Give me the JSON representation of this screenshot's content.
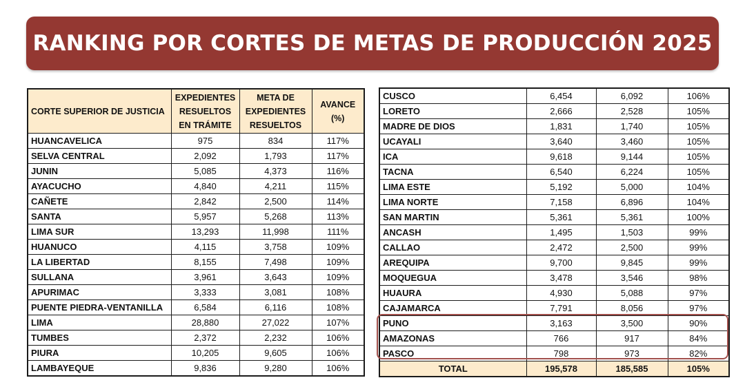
{
  "title": "RANKING POR CORTES DE METAS DE PRODUCCIÓN 2025",
  "colors": {
    "banner": "#943832",
    "header_fill": "#fdebcc",
    "highlight_border": "#a14e4a"
  },
  "headers": {
    "corte": "CORTE SUPERIOR DE JUSTICIA",
    "resueltos": [
      "EXPEDIENTES",
      "RESUELTOS",
      "EN TRÁMITE"
    ],
    "meta": [
      "META DE",
      "EXPEDIENTES",
      "RESUELTOS"
    ],
    "avance": [
      "AVANCE",
      "(%)"
    ]
  },
  "left_rows": [
    {
      "corte": "HUANCAVELICA",
      "resueltos": "975",
      "meta": "834",
      "avance": "117%"
    },
    {
      "corte": "SELVA CENTRAL",
      "resueltos": "2,092",
      "meta": "1,793",
      "avance": "117%"
    },
    {
      "corte": "JUNIN",
      "resueltos": "5,085",
      "meta": "4,373",
      "avance": "116%"
    },
    {
      "corte": "AYACUCHO",
      "resueltos": "4,840",
      "meta": "4,211",
      "avance": "115%"
    },
    {
      "corte": "CAÑETE",
      "resueltos": "2,842",
      "meta": "2,500",
      "avance": "114%"
    },
    {
      "corte": "SANTA",
      "resueltos": "5,957",
      "meta": "5,268",
      "avance": "113%"
    },
    {
      "corte": "LIMA SUR",
      "resueltos": "13,293",
      "meta": "11,998",
      "avance": "111%"
    },
    {
      "corte": "HUANUCO",
      "resueltos": "4,115",
      "meta": "3,758",
      "avance": "109%"
    },
    {
      "corte": "LA LIBERTAD",
      "resueltos": "8,155",
      "meta": "7,498",
      "avance": "109%"
    },
    {
      "corte": "SULLANA",
      "resueltos": "3,961",
      "meta": "3,643",
      "avance": "109%"
    },
    {
      "corte": "APURIMAC",
      "resueltos": "3,333",
      "meta": "3,081",
      "avance": "108%"
    },
    {
      "corte": "PUENTE PIEDRA-VENTANILLA",
      "resueltos": "6,584",
      "meta": "6,116",
      "avance": "108%"
    },
    {
      "corte": "LIMA",
      "resueltos": "28,880",
      "meta": "27,022",
      "avance": "107%"
    },
    {
      "corte": "TUMBES",
      "resueltos": "2,372",
      "meta": "2,232",
      "avance": "106%"
    },
    {
      "corte": "PIURA",
      "resueltos": "10,205",
      "meta": "9,605",
      "avance": "106%"
    },
    {
      "corte": "LAMBAYEQUE",
      "resueltos": "9,836",
      "meta": "9,280",
      "avance": "106%"
    }
  ],
  "right_rows": [
    {
      "corte": "CUSCO",
      "resueltos": "6,454",
      "meta": "6,092",
      "avance": "106%"
    },
    {
      "corte": "LORETO",
      "resueltos": "2,666",
      "meta": "2,528",
      "avance": "105%"
    },
    {
      "corte": "MADRE DE DIOS",
      "resueltos": "1,831",
      "meta": "1,740",
      "avance": "105%"
    },
    {
      "corte": "UCAYALI",
      "resueltos": "3,640",
      "meta": "3,460",
      "avance": "105%"
    },
    {
      "corte": "ICA",
      "resueltos": "9,618",
      "meta": "9,144",
      "avance": "105%"
    },
    {
      "corte": "TACNA",
      "resueltos": "6,540",
      "meta": "6,224",
      "avance": "105%"
    },
    {
      "corte": "LIMA ESTE",
      "resueltos": "5,192",
      "meta": "5,000",
      "avance": "104%"
    },
    {
      "corte": "LIMA NORTE",
      "resueltos": "7,158",
      "meta": "6,896",
      "avance": "104%"
    },
    {
      "corte": "SAN MARTIN",
      "resueltos": "5,361",
      "meta": "5,361",
      "avance": "100%"
    },
    {
      "corte": "ANCASH",
      "resueltos": "1,495",
      "meta": "1,503",
      "avance": "99%"
    },
    {
      "corte": "CALLAO",
      "resueltos": "2,472",
      "meta": "2,500",
      "avance": "99%"
    },
    {
      "corte": "AREQUIPA",
      "resueltos": "9,700",
      "meta": "9,845",
      "avance": "99%"
    },
    {
      "corte": "MOQUEGUA",
      "resueltos": "3,478",
      "meta": "3,546",
      "avance": "98%"
    },
    {
      "corte": "HUAURA",
      "resueltos": "4,930",
      "meta": "5,088",
      "avance": "97%"
    },
    {
      "corte": "CAJAMARCA",
      "resueltos": "7,791",
      "meta": "8,056",
      "avance": "97%"
    },
    {
      "corte": "PUNO",
      "resueltos": "3,163",
      "meta": "3,500",
      "avance": "90%"
    },
    {
      "corte": "AMAZONAS",
      "resueltos": "766",
      "meta": "917",
      "avance": "84%"
    },
    {
      "corte": "PASCO",
      "resueltos": "798",
      "meta": "973",
      "avance": "82%"
    }
  ],
  "total": {
    "label": "TOTAL",
    "resueltos": "195,578",
    "meta": "185,585",
    "avance": "105%"
  },
  "highlighted_rows": [
    "PUNO",
    "AMAZONAS",
    "PASCO"
  ]
}
